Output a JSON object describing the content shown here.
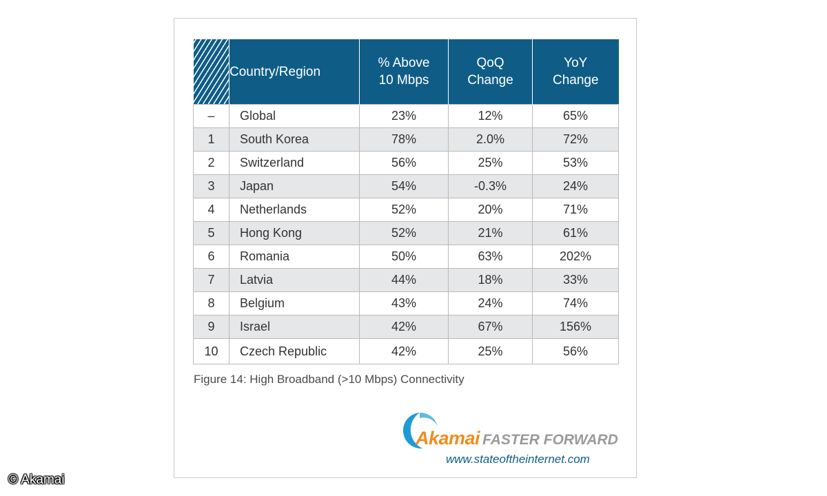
{
  "chart_data": {
    "type": "table",
    "columns": [
      "",
      "Country/Region",
      "% Above 10 Mbps",
      "QoQ Change",
      "YoY Change"
    ],
    "header_lines": {
      "country": [
        "Country/Region"
      ],
      "above": [
        "% Above",
        "10 Mbps"
      ],
      "qoq": [
        "QoQ",
        "Change"
      ],
      "yoy": [
        "YoY",
        "Change"
      ]
    },
    "rows": [
      {
        "rank": "–",
        "country": "Global",
        "above": "23%",
        "qoq": "12%",
        "yoy": "65%"
      },
      {
        "rank": "1",
        "country": "South Korea",
        "above": "78%",
        "qoq": "2.0%",
        "yoy": "72%"
      },
      {
        "rank": "2",
        "country": "Switzerland",
        "above": "56%",
        "qoq": "25%",
        "yoy": "53%"
      },
      {
        "rank": "3",
        "country": "Japan",
        "above": "54%",
        "qoq": "-0.3%",
        "yoy": "24%"
      },
      {
        "rank": "4",
        "country": "Netherlands",
        "above": "52%",
        "qoq": "20%",
        "yoy": "71%"
      },
      {
        "rank": "5",
        "country": "Hong Kong",
        "above": "52%",
        "qoq": "21%",
        "yoy": "61%"
      },
      {
        "rank": "6",
        "country": "Romania",
        "above": "50%",
        "qoq": "63%",
        "yoy": "202%"
      },
      {
        "rank": "7",
        "country": "Latvia",
        "above": "44%",
        "qoq": "18%",
        "yoy": "33%"
      },
      {
        "rank": "8",
        "country": "Belgium",
        "above": "43%",
        "qoq": "24%",
        "yoy": "74%"
      },
      {
        "rank": "9",
        "country": "Israel",
        "above": "42%",
        "qoq": "67%",
        "yoy": "156%"
      },
      {
        "rank": "10",
        "country": "Czech Republic",
        "above": "42%",
        "qoq": "25%",
        "yoy": "56%"
      }
    ],
    "caption": "Figure 14: High Broadband (>10 Mbps) Connectivity"
  },
  "branding": {
    "logo_name": "Akamai",
    "tagline": "FASTER FORWARD",
    "url": "www.stateoftheinternet.com"
  },
  "copyright": "© Akamai",
  "colors": {
    "header_bg": "#0f5d86",
    "row_alt": "#e6e7e9",
    "brand_orange": "#f08c1e",
    "brand_gray": "#9a9a9a"
  }
}
